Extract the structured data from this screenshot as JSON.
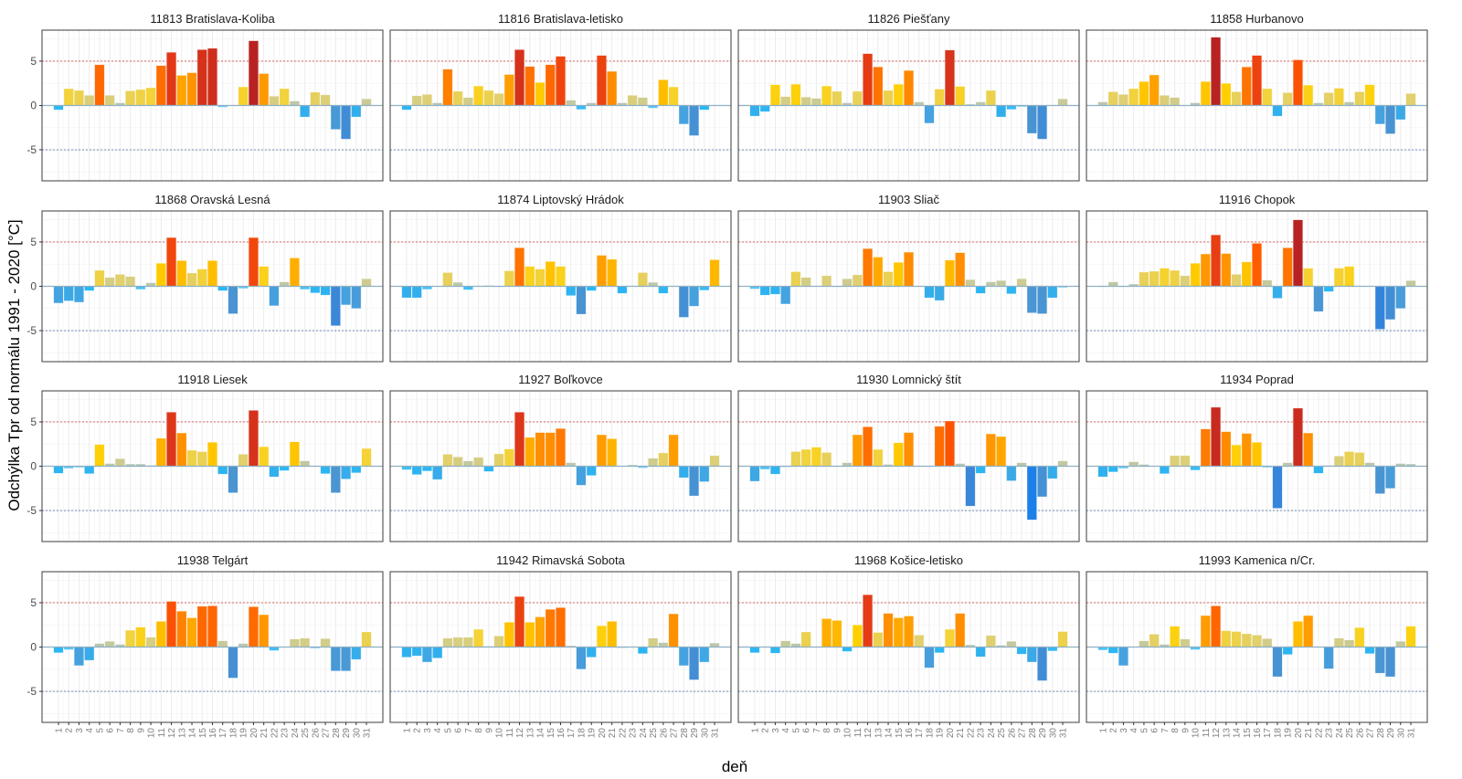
{
  "chart_data": {
    "type": "bar",
    "layout": "facet-grid 4x4",
    "xlabel": "deň",
    "ylabel": "Odchýlka Tpr od normálu 1991 - 2020 [°C]",
    "ylim": [
      -8.5,
      8.5
    ],
    "yticks": [
      -5,
      0,
      5
    ],
    "reference_lines": [
      {
        "value": 5,
        "style": "dashed",
        "color": "#d9534f"
      },
      {
        "value": -5,
        "style": "dashed",
        "color": "#5b7fb0"
      }
    ],
    "categories": [
      "1",
      "2",
      "3",
      "4",
      "5",
      "6",
      "7",
      "8",
      "9",
      "10",
      "11",
      "12",
      "13",
      "14",
      "15",
      "16",
      "17",
      "18",
      "19",
      "20",
      "21",
      "22",
      "23",
      "24",
      "25",
      "26",
      "27",
      "28",
      "29",
      "30",
      "31"
    ],
    "grid": true,
    "panels": [
      {
        "title": "11813 Bratislava-Koliba",
        "values": [
          -0.5,
          1.9,
          1.7,
          1.15,
          4.6,
          1.15,
          0.3,
          1.65,
          1.8,
          2.0,
          4.5,
          6.0,
          3.4,
          3.7,
          6.3,
          6.45,
          -0.2,
          0,
          2.1,
          7.3,
          3.6,
          1.05,
          1.9,
          0.5,
          -1.3,
          1.5,
          1.2,
          -2.7,
          -3.8,
          -1.3,
          0.75
        ]
      },
      {
        "title": "11816 Bratislava-letisko",
        "values": [
          -0.5,
          1.1,
          1.25,
          0.3,
          4.1,
          1.6,
          0.9,
          2.2,
          1.7,
          1.35,
          3.5,
          6.3,
          4.4,
          2.6,
          4.6,
          5.55,
          0.6,
          -0.45,
          0.3,
          5.65,
          3.85,
          0.3,
          1.15,
          0.9,
          -0.3,
          2.9,
          2.1,
          -2.1,
          -3.4,
          -0.5,
          0
        ]
      },
      {
        "title": "11826 Piešťany",
        "values": [
          -1.2,
          -0.7,
          2.35,
          1.0,
          2.4,
          0.95,
          0.8,
          2.2,
          1.6,
          0.3,
          1.6,
          5.85,
          4.35,
          1.7,
          2.4,
          3.95,
          0.4,
          -2.0,
          1.85,
          6.25,
          2.15,
          0.15,
          0.4,
          1.7,
          -1.3,
          -0.45,
          -0.15,
          -3.15,
          -3.8,
          0,
          0.75
        ]
      },
      {
        "title": "11858 Hurbanovo",
        "values": [
          0.4,
          1.55,
          1.25,
          1.9,
          2.7,
          3.45,
          1.15,
          0.9,
          0,
          0.3,
          2.7,
          7.7,
          2.5,
          1.55,
          4.35,
          5.65,
          1.9,
          -1.2,
          1.45,
          5.15,
          2.3,
          0.3,
          1.45,
          1.95,
          0.4,
          1.55,
          2.35,
          -2.1,
          -3.2,
          -1.6,
          1.35
        ]
      },
      {
        "title": "11868 Oravská Lesná",
        "values": [
          -1.9,
          -1.65,
          -1.8,
          -0.5,
          1.8,
          1.0,
          1.35,
          1.1,
          -0.35,
          0.4,
          2.6,
          5.5,
          2.9,
          1.5,
          1.95,
          2.9,
          -0.5,
          -3.1,
          -0.25,
          5.5,
          2.25,
          -2.2,
          0.5,
          3.2,
          -0.35,
          -0.75,
          -1.0,
          -4.45,
          -2.1,
          -2.5,
          0.85
        ]
      },
      {
        "title": "11874 Liptovský Hrádok",
        "values": [
          -1.3,
          -1.3,
          -0.35,
          0.05,
          1.55,
          0.45,
          -0.4,
          0,
          0.1,
          -0.05,
          1.75,
          4.35,
          2.25,
          1.95,
          2.8,
          2.25,
          -1.05,
          -3.15,
          -0.5,
          3.5,
          3.05,
          -0.8,
          0,
          1.55,
          0.45,
          -0.8,
          0,
          -3.5,
          -2.25,
          -0.45,
          3.0
        ]
      },
      {
        "title": "11903 Sliač",
        "values": [
          -0.3,
          -1.0,
          -0.9,
          -2.0,
          1.65,
          1.0,
          0.05,
          1.2,
          -0.05,
          0.85,
          1.3,
          4.25,
          3.3,
          1.65,
          2.7,
          3.85,
          0,
          -1.3,
          -1.6,
          2.95,
          3.8,
          0.75,
          -0.8,
          0.5,
          0.65,
          -0.85,
          0.85,
          -3.0,
          -3.1,
          -1.3,
          -0.15
        ]
      },
      {
        "title": "11916 Chopok",
        "values": [
          -0.05,
          0.5,
          -0.05,
          0.25,
          1.6,
          1.7,
          2.05,
          1.8,
          1.2,
          2.6,
          3.65,
          5.8,
          3.7,
          1.35,
          2.75,
          4.85,
          0.7,
          -1.35,
          4.35,
          7.5,
          2.05,
          -2.85,
          -0.6,
          2.05,
          2.25,
          0,
          0,
          -4.85,
          -3.75,
          -2.5,
          0.65
        ]
      },
      {
        "title": "11918 Liesek",
        "values": [
          -0.8,
          -0.25,
          -0.15,
          -0.85,
          2.45,
          0.3,
          0.85,
          0.25,
          0.25,
          0.1,
          3.15,
          6.1,
          3.75,
          1.8,
          1.65,
          2.7,
          -0.9,
          -3.0,
          1.35,
          6.3,
          2.2,
          -1.2,
          -0.5,
          2.75,
          0.6,
          0,
          -0.85,
          -3.0,
          -1.45,
          -0.75,
          2.0
        ]
      },
      {
        "title": "11927 Boľkovce",
        "values": [
          -0.4,
          -0.95,
          -0.55,
          -1.5,
          1.35,
          1.05,
          0.6,
          1.0,
          -0.6,
          1.4,
          1.95,
          6.1,
          3.25,
          3.8,
          3.8,
          4.25,
          0.4,
          -2.15,
          -1.05,
          3.55,
          3.1,
          0,
          0.15,
          -0.2,
          0.9,
          1.5,
          3.55,
          -1.3,
          -3.35,
          -1.75,
          1.2
        ]
      },
      {
        "title": "11930 Lomnický štít",
        "values": [
          -1.7,
          -0.35,
          -0.9,
          -0.1,
          1.65,
          1.9,
          2.15,
          1.55,
          0,
          0.4,
          3.55,
          4.45,
          1.9,
          0.2,
          2.65,
          3.8,
          0,
          0,
          4.5,
          5.1,
          0.3,
          -4.5,
          -0.8,
          3.65,
          3.35,
          -1.65,
          0.4,
          -6.05,
          -3.45,
          -1.4,
          0.6
        ]
      },
      {
        "title": "11934 Poprad",
        "values": [
          -1.2,
          -0.65,
          -0.25,
          0.5,
          0.2,
          0,
          -0.85,
          1.2,
          1.2,
          -0.45,
          4.2,
          6.65,
          3.9,
          2.4,
          3.7,
          2.7,
          -0.15,
          -4.75,
          0.4,
          6.55,
          3.75,
          -0.8,
          0.1,
          1.15,
          1.65,
          1.55,
          0.4,
          -3.1,
          -2.5,
          0.3,
          0.25
        ]
      },
      {
        "title": "11938 Telgárt",
        "values": [
          -0.65,
          -0.3,
          -2.1,
          -1.5,
          0.4,
          0.65,
          0.3,
          1.9,
          2.25,
          1.1,
          2.9,
          5.15,
          4.05,
          3.3,
          4.6,
          4.65,
          0.7,
          -3.5,
          0.4,
          4.55,
          3.65,
          -0.4,
          0,
          0.9,
          1.0,
          -0.15,
          0.95,
          -2.7,
          -2.7,
          -1.4,
          1.7
        ]
      },
      {
        "title": "11942 Rimavská Sobota",
        "values": [
          -1.15,
          -1.0,
          -1.7,
          -1.25,
          1.0,
          1.1,
          1.1,
          2.0,
          0.1,
          1.25,
          2.8,
          5.7,
          2.8,
          3.4,
          4.25,
          4.45,
          0.15,
          -2.5,
          -1.15,
          2.4,
          2.9,
          -0.1,
          0,
          -0.75,
          1.0,
          0.5,
          3.75,
          -2.1,
          -3.7,
          -1.7,
          0.45
        ]
      },
      {
        "title": "11968 Košice-letisko",
        "values": [
          -0.65,
          0,
          -0.7,
          0.7,
          0.4,
          1.7,
          0,
          3.2,
          3.0,
          -0.5,
          2.5,
          5.9,
          1.65,
          3.8,
          3.3,
          3.5,
          1.35,
          -2.35,
          -0.65,
          2.0,
          3.8,
          0.25,
          -1.1,
          1.3,
          0.2,
          0.65,
          -0.8,
          -1.7,
          -3.8,
          -0.45,
          1.75
        ]
      },
      {
        "title": "11993 Kamenica n/Cr.",
        "values": [
          -0.35,
          -0.7,
          -2.1,
          0.05,
          0.7,
          1.45,
          0.3,
          2.35,
          0.9,
          -0.3,
          3.55,
          4.65,
          1.85,
          1.75,
          1.5,
          1.35,
          0.95,
          -3.35,
          -0.85,
          2.9,
          3.55,
          0,
          -2.45,
          1.0,
          0.8,
          2.2,
          -0.75,
          -2.95,
          -3.35,
          0.65,
          2.35
        ]
      }
    ]
  }
}
